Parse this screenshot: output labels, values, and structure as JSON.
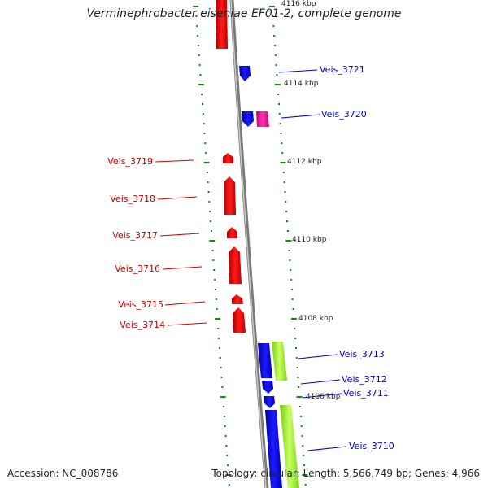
{
  "title": "Verminephrobacter eiseniae EF01-2, complete genome",
  "footer": {
    "accession": "Accession: NC_008786",
    "summary": "Topology: circular; Length: 5,566,749 bp; Genes: 4,966"
  },
  "colors": {
    "reverse_gene": "#ff0000",
    "forward_gene": "#0000ff",
    "rna_gene": "#ff1aa8",
    "feature_bar": "#a8ff3a",
    "tick": "#118811",
    "backbone": "#808080"
  },
  "scale_labels": [
    {
      "text": "4116 kbp",
      "kbp": 4116
    },
    {
      "text": "4114 kbp",
      "kbp": 4114
    },
    {
      "text": "4112 kbp",
      "kbp": 4112
    },
    {
      "text": "4110 kbp",
      "kbp": 4110
    },
    {
      "text": "4108 kbp",
      "kbp": 4108
    },
    {
      "text": "4106 kbp",
      "kbp": 4106
    }
  ],
  "gene_labels": [
    {
      "text": "Veis_3721",
      "strand": "forward"
    },
    {
      "text": "Veis_3720",
      "strand": "forward"
    },
    {
      "text": "Veis_3719",
      "strand": "reverse"
    },
    {
      "text": "Veis_3718",
      "strand": "reverse"
    },
    {
      "text": "Veis_3717",
      "strand": "reverse"
    },
    {
      "text": "Veis_3716",
      "strand": "reverse"
    },
    {
      "text": "Veis_3715",
      "strand": "reverse"
    },
    {
      "text": "Veis_3714",
      "strand": "reverse"
    },
    {
      "text": "Veis_3713",
      "strand": "forward"
    },
    {
      "text": "Veis_3712",
      "strand": "forward"
    },
    {
      "text": "Veis_3711",
      "strand": "forward"
    },
    {
      "text": "Veis_3710",
      "strand": "forward"
    }
  ]
}
